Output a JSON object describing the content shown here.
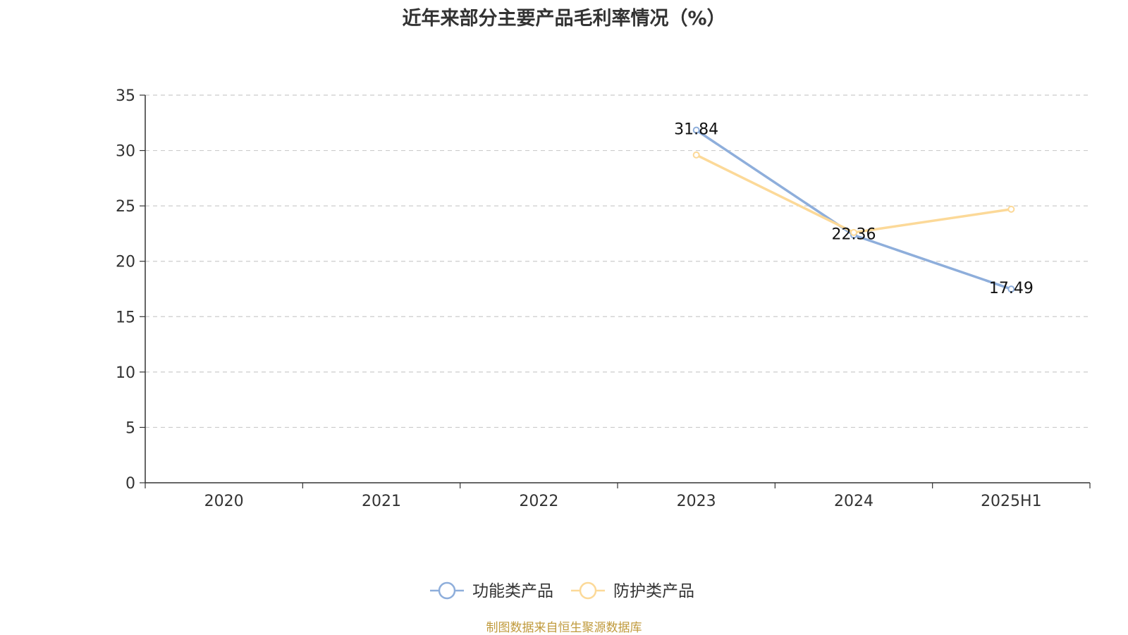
{
  "chart_data": {
    "type": "line",
    "title": "近年来部分主要产品毛利率情况（%）",
    "categories": [
      "2020",
      "2021",
      "2022",
      "2023",
      "2024",
      "2025H1"
    ],
    "ylim": [
      0,
      35
    ],
    "yticks": [
      0,
      5,
      10,
      15,
      20,
      25,
      30,
      35
    ],
    "grid": true,
    "legend_position": "bottom",
    "series": [
      {
        "name": "功能类产品",
        "color": "#8eaedb",
        "values": [
          null,
          null,
          null,
          31.84,
          22.36,
          17.49
        ],
        "labels": [
          null,
          null,
          null,
          "31.84",
          "22.36",
          "17.49"
        ]
      },
      {
        "name": "防护类产品",
        "color": "#fcd998",
        "values": [
          null,
          null,
          null,
          29.6,
          22.6,
          24.7
        ],
        "labels": [
          null,
          null,
          null,
          null,
          null,
          null
        ]
      }
    ]
  },
  "footer": {
    "source": "制图数据来自恒生聚源数据库"
  }
}
